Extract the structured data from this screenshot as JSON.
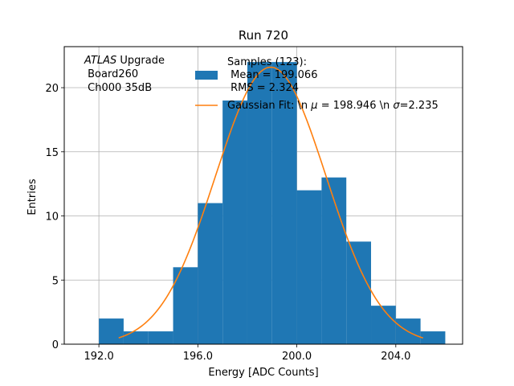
{
  "chart_data": {
    "type": "bar",
    "title": "Run 720",
    "xlabel": "Energy [ADC Counts]",
    "ylabel": "Entries",
    "xlim": [
      190.6,
      206.7
    ],
    "ylim": [
      0,
      23.2
    ],
    "grid": true,
    "xticks": [
      192,
      196,
      200,
      204
    ],
    "xtick_labels": [
      "192.0",
      "196.0",
      "200.0",
      "204.0"
    ],
    "yticks": [
      0,
      5,
      10,
      15,
      20
    ],
    "yticks_labels": [
      "0",
      "5",
      "10",
      "15",
      "20"
    ],
    "bin_edges": [
      192.0,
      193.0,
      194.0,
      195.0,
      196.0,
      197.0,
      198.0,
      199.0,
      200.0,
      201.0,
      202.0,
      203.0,
      204.0,
      205.0,
      206.0
    ],
    "histogram_color": "#1f77b4",
    "values": [
      2,
      1,
      1,
      6,
      11,
      19,
      22,
      22,
      12,
      13,
      8,
      3,
      2,
      1
    ],
    "fit": {
      "name": "Gaussian Fit",
      "color": "#ff7f0e",
      "mu": 198.946,
      "sigma": 2.235,
      "amplitude": 21.6,
      "x_range": [
        192.8,
        205.1
      ]
    },
    "legend": {
      "placement": "top-right",
      "hist_label_lines": [
        "Samples (123):",
        " Mean = 199.066",
        " RMS = 2.324"
      ],
      "fit_label_parts": {
        "prefix": "Gaussian Fit: \\n ",
        "mu_symbol": "μ",
        "mu_text": " = 198.946 \\n ",
        "sigma_symbol": "σ",
        "sigma_text": "=2.235"
      }
    },
    "annotation": {
      "italic": "ATLAS",
      "rest": " Upgrade",
      "line2": " Board260",
      "line3": " Ch000 35dB"
    }
  }
}
